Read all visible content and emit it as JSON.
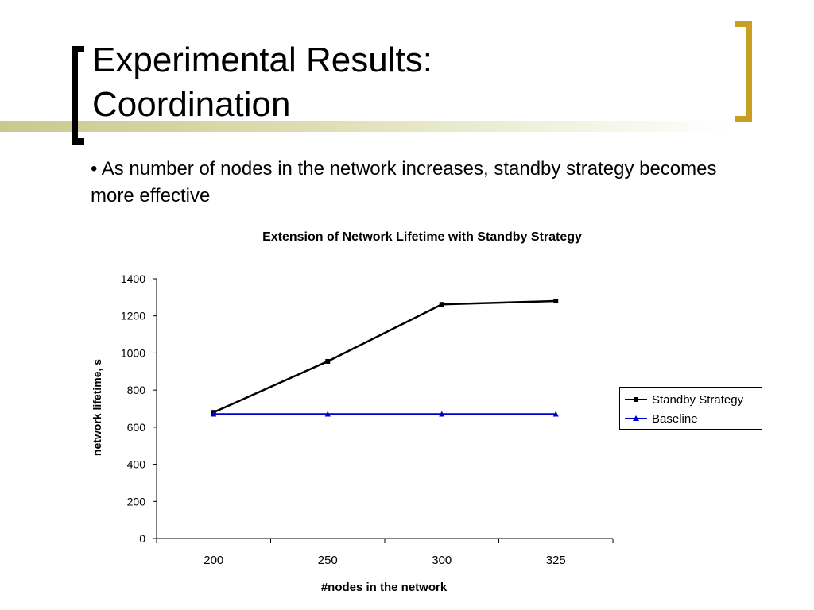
{
  "slide": {
    "title_line1": "Experimental Results:",
    "title_line2": "Coordination",
    "bullet": "• As number of nodes in the network increases, standby strategy becomes more effective"
  },
  "colors": {
    "accent_gold": "#c8a020",
    "bar_olive": "#c9c98e",
    "standby": "#000000",
    "baseline": "#0000cc"
  },
  "chart_data": {
    "type": "line",
    "title": "Extension of Network Lifetime with Standby Strategy",
    "xlabel": "#nodes in the network",
    "ylabel": "network lifetime, s",
    "categories": [
      "200",
      "250",
      "300",
      "325"
    ],
    "ylim": [
      0,
      1400
    ],
    "yticks": [
      0,
      200,
      400,
      600,
      800,
      1000,
      1200,
      1400
    ],
    "grid": false,
    "legend_position": "right",
    "series": [
      {
        "name": "Standby Strategy",
        "values": [
          680,
          955,
          1262,
          1280
        ],
        "color": "#000000",
        "marker": "square"
      },
      {
        "name": "Baseline",
        "values": [
          670,
          670,
          670,
          670
        ],
        "color": "#0000cc",
        "marker": "triangle"
      }
    ]
  }
}
